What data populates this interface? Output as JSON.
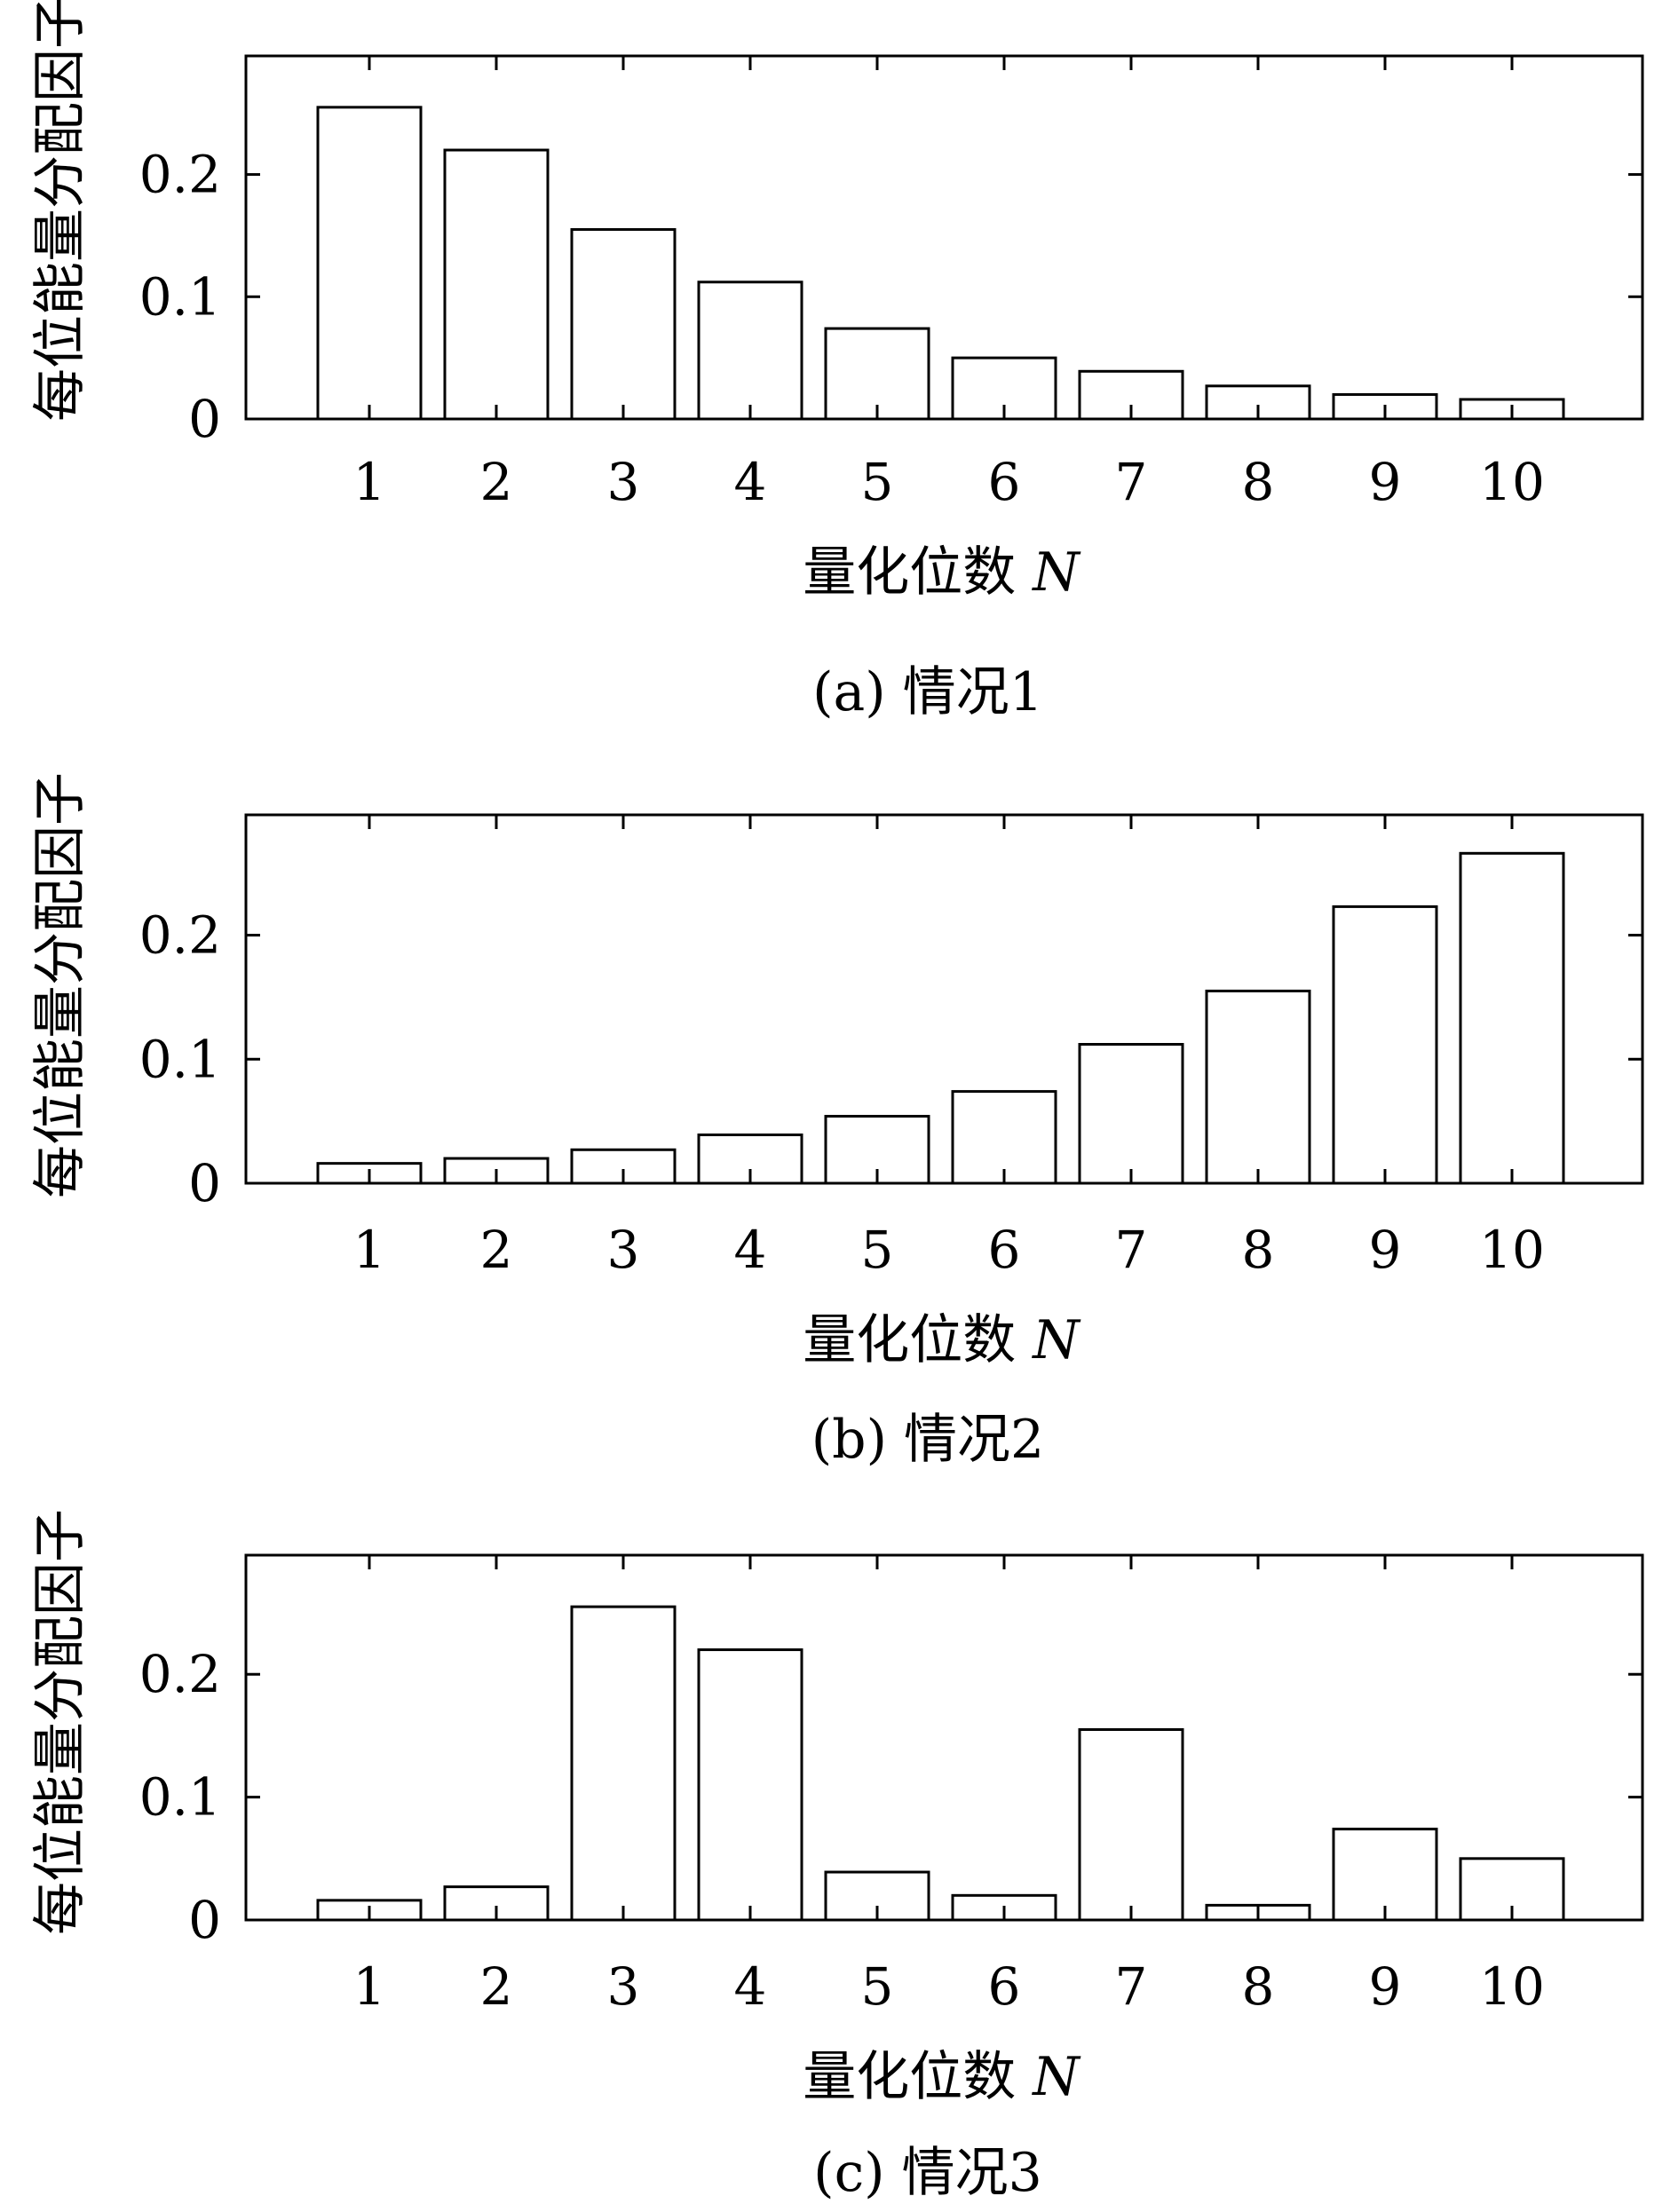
{
  "chart_data": [
    {
      "type": "bar",
      "caption": "(a) 情况1",
      "ylabel": "每位能量分配因子",
      "xlabel": "量化位数",
      "xlabel_var": "N",
      "categories": [
        "1",
        "2",
        "3",
        "4",
        "5",
        "6",
        "7",
        "8",
        "9",
        "10"
      ],
      "values": [
        0.255,
        0.22,
        0.155,
        0.112,
        0.074,
        0.05,
        0.039,
        0.027,
        0.02,
        0.016
      ],
      "yticks": [
        "0",
        "0.1",
        "0.2"
      ],
      "ytick_values": [
        0,
        0.1,
        0.2
      ],
      "ylim": [
        0,
        0.297
      ],
      "grid": false,
      "bar_fill": "#ffffff",
      "bar_stroke": "#000000"
    },
    {
      "type": "bar",
      "caption": "(b) 情况2",
      "ylabel": "每位能量分配因子",
      "xlabel": "量化位数",
      "xlabel_var": "N",
      "categories": [
        "1",
        "2",
        "3",
        "4",
        "5",
        "6",
        "7",
        "8",
        "9",
        "10"
      ],
      "values": [
        0.016,
        0.02,
        0.027,
        0.039,
        0.054,
        0.074,
        0.112,
        0.155,
        0.223,
        0.266
      ],
      "yticks": [
        "0",
        "0.1",
        "0.2"
      ],
      "ytick_values": [
        0,
        0.1,
        0.2
      ],
      "ylim": [
        0,
        0.297
      ],
      "grid": false,
      "bar_fill": "#ffffff",
      "bar_stroke": "#000000"
    },
    {
      "type": "bar",
      "caption": "(c) 情况3",
      "ylabel": "每位能量分配因子",
      "xlabel": "量化位数",
      "xlabel_var": "N",
      "categories": [
        "1",
        "2",
        "3",
        "4",
        "5",
        "6",
        "7",
        "8",
        "9",
        "10"
      ],
      "values": [
        0.016,
        0.027,
        0.255,
        0.22,
        0.039,
        0.02,
        0.155,
        0.012,
        0.074,
        0.05
      ],
      "yticks": [
        "0",
        "0.1",
        "0.2"
      ],
      "ytick_values": [
        0,
        0.1,
        0.2
      ],
      "ylim": [
        0,
        0.297
      ],
      "grid": false,
      "bar_fill": "#ffffff",
      "bar_stroke": "#000000"
    }
  ]
}
